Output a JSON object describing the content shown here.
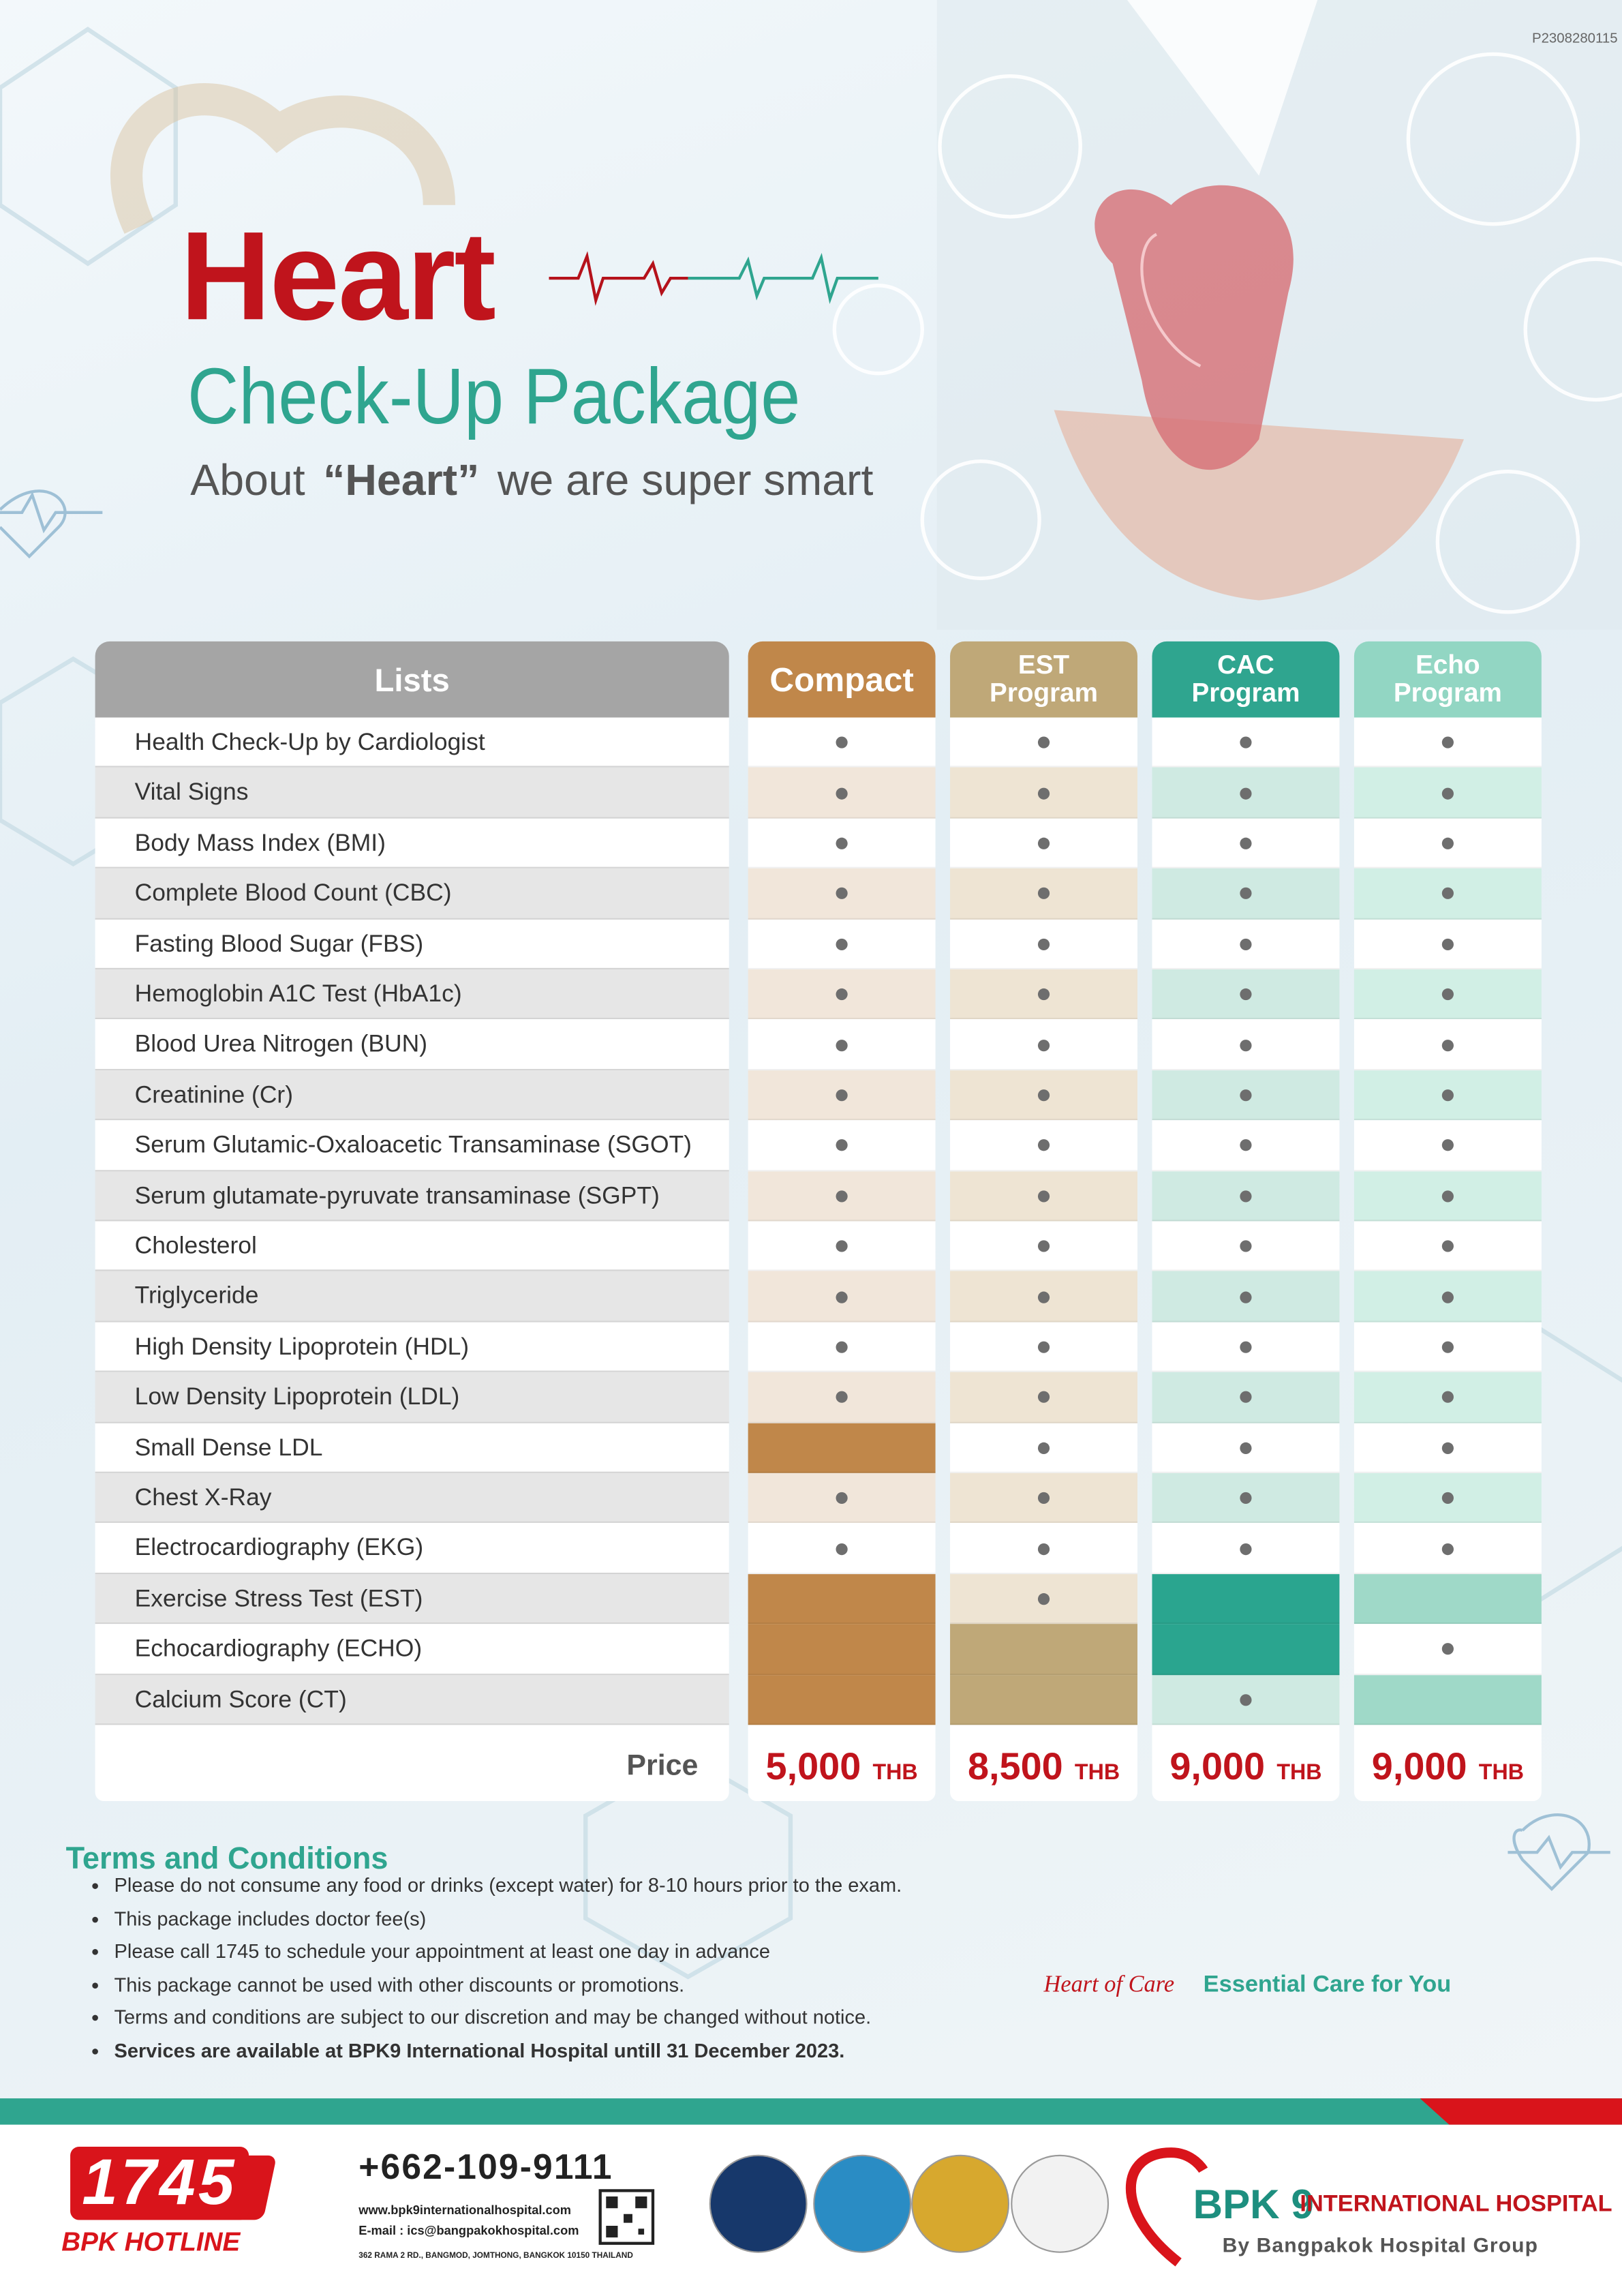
{
  "reference_code": "P2308280115",
  "header": {
    "title": "Heart",
    "subtitle": "Check-Up Package",
    "tagline": [
      "About",
      "“Heart”",
      "we are super smart"
    ]
  },
  "table": {
    "list_header": "Lists",
    "columns": [
      [
        "Compact"
      ],
      [
        "EST",
        "Program"
      ],
      [
        "CAC",
        "Program"
      ],
      [
        "Echo",
        "Program"
      ]
    ],
    "rows": [
      {
        "item": "Health Check-Up by Cardiologist",
        "included": [
          true,
          true,
          true,
          true
        ]
      },
      {
        "item": "Vital Signs",
        "included": [
          true,
          true,
          true,
          true
        ]
      },
      {
        "item": "Body Mass Index (BMI)",
        "included": [
          true,
          true,
          true,
          true
        ]
      },
      {
        "item": "Complete Blood Count (CBC)",
        "included": [
          true,
          true,
          true,
          true
        ]
      },
      {
        "item": "Fasting Blood Sugar (FBS)",
        "included": [
          true,
          true,
          true,
          true
        ]
      },
      {
        "item": "Hemoglobin A1C Test (HbA1c)",
        "included": [
          true,
          true,
          true,
          true
        ]
      },
      {
        "item": "Blood Urea Nitrogen (BUN)",
        "included": [
          true,
          true,
          true,
          true
        ]
      },
      {
        "item": "Creatinine (Cr)",
        "included": [
          true,
          true,
          true,
          true
        ]
      },
      {
        "item": "Serum Glutamic-Oxaloacetic Transaminase (SGOT)",
        "included": [
          true,
          true,
          true,
          true
        ]
      },
      {
        "item": "Serum glutamate-pyruvate transaminase (SGPT)",
        "included": [
          true,
          true,
          true,
          true
        ]
      },
      {
        "item": "Cholesterol",
        "included": [
          true,
          true,
          true,
          true
        ]
      },
      {
        "item": "Triglyceride",
        "included": [
          true,
          true,
          true,
          true
        ]
      },
      {
        "item": "High Density Lipoprotein (HDL)",
        "included": [
          true,
          true,
          true,
          true
        ]
      },
      {
        "item": "Low Density Lipoprotein (LDL)",
        "included": [
          true,
          true,
          true,
          true
        ]
      },
      {
        "item": "Small Dense LDL",
        "included": [
          false,
          true,
          true,
          true
        ]
      },
      {
        "item": "Chest X-Ray",
        "included": [
          true,
          true,
          true,
          true
        ]
      },
      {
        "item": "Electrocardiography (EKG)",
        "included": [
          true,
          true,
          true,
          true
        ]
      },
      {
        "item": "Exercise Stress Test (EST)",
        "included": [
          false,
          true,
          false,
          false
        ]
      },
      {
        "item": "Echocardiography (ECHO)",
        "included": [
          false,
          false,
          false,
          true
        ]
      },
      {
        "item": "Calcium Score (CT)",
        "included": [
          false,
          false,
          true,
          false
        ]
      }
    ],
    "price_label": "Price",
    "prices": [
      {
        "amount": "5,000",
        "currency": "THB"
      },
      {
        "amount": "8,500",
        "currency": "THB"
      },
      {
        "amount": "9,000",
        "currency": "THB"
      },
      {
        "amount": "9,000",
        "currency": "THB"
      }
    ]
  },
  "terms": {
    "title": "Terms and Conditions",
    "items": [
      "Please do not consume any food or drinks (except water) for 8-10 hours prior to the exam.",
      "This package includes doctor fee(s)",
      "Please call 1745 to schedule your appointment at least one day in advance",
      "This package cannot be used with other discounts or promotions.",
      "Terms and conditions are subject to our discretion and may be changed without notice.",
      "Services are available at BPK9 International Hospital untill 31 December 2023."
    ]
  },
  "slogan": {
    "brand": "Heart of Care",
    "text": "Essential Care for You"
  },
  "footer": {
    "hotline_number": "1745",
    "hotline_label": "BPK HOTLINE",
    "phone": "+662-109-9111",
    "website": "www.bpk9internationalhospital.com",
    "email": "E-mail : ics@bangpakokhospital.com",
    "address": "362 RAMA 2 RD., BANGMOD, JOMTHONG, BANGKOK 10150 THAILAND",
    "hospital_mark": "BPK 9",
    "hospital_name": "INTERNATIONAL HOSPITAL",
    "group": "By Bangpakok Hospital Group"
  }
}
